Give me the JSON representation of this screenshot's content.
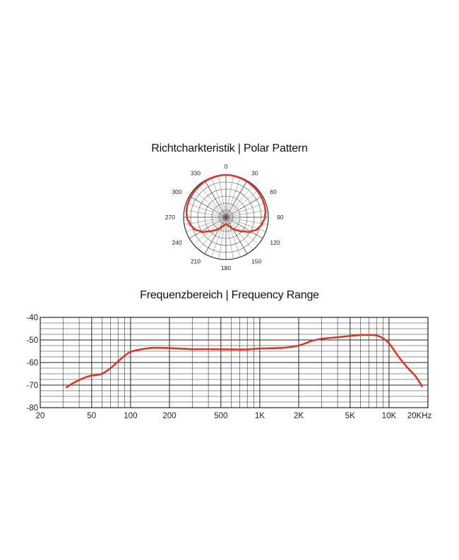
{
  "chart_data": [
    {
      "type": "polar",
      "title": "Richtcharkteristik | Polar Pattern",
      "angle_labels": [
        "0",
        "30",
        "60",
        "90",
        "120",
        "150",
        "180",
        "210",
        "240",
        "270",
        "300",
        "330"
      ],
      "angles_deg": [
        0,
        30,
        60,
        90,
        120,
        150,
        180,
        210,
        240,
        270,
        300,
        330
      ],
      "radial_rings": 6,
      "grid": true,
      "series_color": "#d63a24",
      "pattern": {
        "angles_deg": [
          0,
          10,
          20,
          30,
          40,
          50,
          60,
          70,
          80,
          90,
          100,
          110,
          120,
          130,
          140,
          150,
          160,
          170,
          180,
          190,
          200,
          210,
          220,
          230,
          240,
          250,
          260,
          270,
          280,
          290,
          300,
          310,
          320,
          330,
          340,
          350
        ],
        "relative_level": [
          1.0,
          0.995,
          0.985,
          0.98,
          0.97,
          0.965,
          0.96,
          0.955,
          0.945,
          0.92,
          0.87,
          0.8,
          0.68,
          0.52,
          0.4,
          0.31,
          0.23,
          0.18,
          0.16,
          0.18,
          0.23,
          0.31,
          0.4,
          0.52,
          0.68,
          0.8,
          0.87,
          0.92,
          0.945,
          0.955,
          0.96,
          0.965,
          0.97,
          0.98,
          0.985,
          0.995
        ]
      }
    },
    {
      "type": "line",
      "title": "Frequenzbereich | Frequency Range",
      "x_scale": "log",
      "xlim": [
        20,
        20000
      ],
      "ylim": [
        -80,
        -40
      ],
      "x_tick_values": [
        20,
        50,
        100,
        200,
        500,
        1000,
        2000,
        5000,
        10000,
        20000
      ],
      "x_tick_labels": [
        "20",
        "50",
        "100",
        "200",
        "500",
        "1K",
        "2K",
        "5K",
        "10K",
        "20KHz"
      ],
      "y_tick_values": [
        -40,
        -50,
        -60,
        -70,
        -80
      ],
      "y_tick_labels": [
        "-40",
        "-50",
        "-60",
        "-70",
        "-80"
      ],
      "grid": true,
      "series_color": "#d63a24",
      "series": [
        {
          "x": [
            32,
            35,
            40,
            45,
            50,
            60,
            70,
            80,
            90,
            100,
            120,
            150,
            200,
            300,
            400,
            600,
            800,
            1000,
            1500,
            2000,
            2500,
            3000,
            4000,
            5000,
            6000,
            7000,
            8000,
            9000,
            10000,
            12000,
            14000,
            16000,
            18000
          ],
          "y": [
            -71,
            -69.5,
            -67.8,
            -66.5,
            -65.8,
            -65,
            -62.5,
            -59.5,
            -57,
            -55.3,
            -54.2,
            -53.5,
            -53.6,
            -54.1,
            -54.1,
            -54.2,
            -54.2,
            -53.8,
            -53.5,
            -52.5,
            -50.5,
            -49.5,
            -48.8,
            -48.2,
            -47.8,
            -47.8,
            -48,
            -49.3,
            -51.5,
            -57.8,
            -62.5,
            -66,
            -70.5
          ]
        }
      ]
    }
  ]
}
